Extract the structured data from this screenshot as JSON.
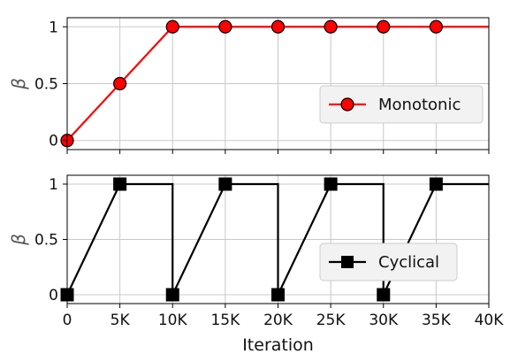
{
  "chart_data": [
    {
      "type": "line",
      "ylabel": "β",
      "xlim": [
        0,
        40000
      ],
      "ylim": [
        -0.08,
        1.08
      ],
      "grid": true,
      "legend_placement": "center-right",
      "x_ticks": [
        0,
        5000,
        10000,
        15000,
        20000,
        25000,
        30000,
        35000,
        40000
      ],
      "x_tick_labels": [
        "0",
        "5K",
        "10K",
        "15K",
        "20K",
        "25K",
        "30K",
        "35K",
        "40K"
      ],
      "y_ticks": [
        0,
        0.5,
        1
      ],
      "y_tick_labels": [
        "0",
        "0.5",
        "1"
      ],
      "series": [
        {
          "name": "Monotonic",
          "color": "#ff0000",
          "marker": "circle",
          "line_x": [
            0,
            10000,
            40000
          ],
          "line_y": [
            0,
            1,
            1
          ],
          "marker_x": [
            0,
            5000,
            10000,
            15000,
            20000,
            25000,
            30000,
            35000
          ],
          "marker_y": [
            0,
            0.5,
            1,
            1,
            1,
            1,
            1,
            1
          ]
        }
      ]
    },
    {
      "type": "line",
      "xlabel": "Iteration",
      "ylabel": "β",
      "xlim": [
        0,
        40000
      ],
      "ylim": [
        -0.08,
        1.08
      ],
      "grid": true,
      "legend_placement": "center-right",
      "x_ticks": [
        0,
        5000,
        10000,
        15000,
        20000,
        25000,
        30000,
        35000,
        40000
      ],
      "x_tick_labels": [
        "0",
        "5K",
        "10K",
        "15K",
        "20K",
        "25K",
        "30K",
        "35K",
        "40K"
      ],
      "y_ticks": [
        0,
        0.5,
        1
      ],
      "y_tick_labels": [
        "0",
        "0.5",
        "1"
      ],
      "series": [
        {
          "name": "Cyclical",
          "color": "#000000",
          "marker": "square",
          "line_x": [
            0,
            5000,
            10000,
            10000,
            15000,
            20000,
            20000,
            25000,
            30000,
            30000,
            35000,
            40000
          ],
          "line_y": [
            0,
            1,
            1,
            0,
            1,
            1,
            0,
            1,
            1,
            0,
            1,
            1
          ],
          "marker_x": [
            0,
            5000,
            10000,
            15000,
            20000,
            25000,
            30000,
            35000
          ],
          "marker_y": [
            0,
            1,
            0,
            1,
            0,
            1,
            0,
            1
          ]
        }
      ]
    }
  ]
}
